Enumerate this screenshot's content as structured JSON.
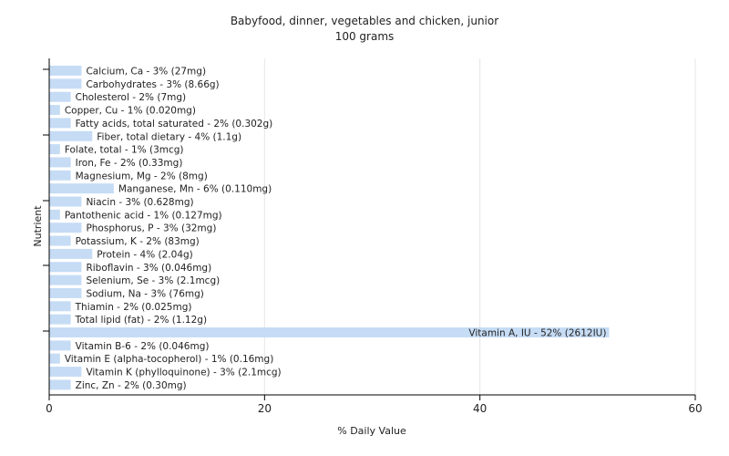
{
  "chart_data": {
    "type": "bar",
    "orientation": "horizontal",
    "title": "Babyfood, dinner, vegetables and chicken, junior",
    "subtitle": "100 grams",
    "xlabel": "% Daily Value",
    "ylabel": "Nutrient",
    "xlim": [
      0,
      60
    ],
    "xticks": [
      "0",
      "20",
      "40",
      "60"
    ],
    "grid": true,
    "bar_color": "#c6dcf5",
    "categories": [
      "Calcium, Ca",
      "Carbohydrates",
      "Cholesterol",
      "Copper, Cu",
      "Fatty acids, total saturated",
      "Fiber, total dietary",
      "Folate, total",
      "Iron, Fe",
      "Magnesium, Mg",
      "Manganese, Mn",
      "Niacin",
      "Pantothenic acid",
      "Phosphorus, P",
      "Potassium, K",
      "Protein",
      "Riboflavin",
      "Selenium, Se",
      "Sodium, Na",
      "Thiamin",
      "Total lipid (fat)",
      "Vitamin A, IU",
      "Vitamin B-6",
      "Vitamin E (alpha-tocopherol)",
      "Vitamin K (phylloquinone)",
      "Zinc, Zn"
    ],
    "values": [
      3,
      3,
      2,
      1,
      2,
      4,
      1,
      2,
      2,
      6,
      3,
      1,
      3,
      2,
      4,
      3,
      3,
      3,
      2,
      2,
      52,
      2,
      1,
      3,
      2
    ],
    "labels": [
      "Calcium, Ca - 3% (27mg)",
      "Carbohydrates - 3% (8.66g)",
      "Cholesterol - 2% (7mg)",
      "Copper, Cu - 1% (0.020mg)",
      "Fatty acids, total saturated - 2% (0.302g)",
      "Fiber, total dietary - 4% (1.1g)",
      "Folate, total - 1% (3mcg)",
      "Iron, Fe - 2% (0.33mg)",
      "Magnesium, Mg - 2% (8mg)",
      "Manganese, Mn - 6% (0.110mg)",
      "Niacin - 3% (0.628mg)",
      "Pantothenic acid - 1% (0.127mg)",
      "Phosphorus, P - 3% (32mg)",
      "Potassium, K - 2% (83mg)",
      "Protein - 4% (2.04g)",
      "Riboflavin - 3% (0.046mg)",
      "Selenium, Se - 3% (2.1mcg)",
      "Sodium, Na - 3% (76mg)",
      "Thiamin - 2% (0.025mg)",
      "Total lipid (fat) - 2% (1.12g)",
      "Vitamin A, IU - 52% (2612IU)",
      "Vitamin B-6 - 2% (0.046mg)",
      "Vitamin E (alpha-tocopherol) - 1% (0.16mg)",
      "Vitamin K (phylloquinone) - 3% (2.1mcg)",
      "Zinc, Zn - 2% (0.30mg)"
    ]
  }
}
